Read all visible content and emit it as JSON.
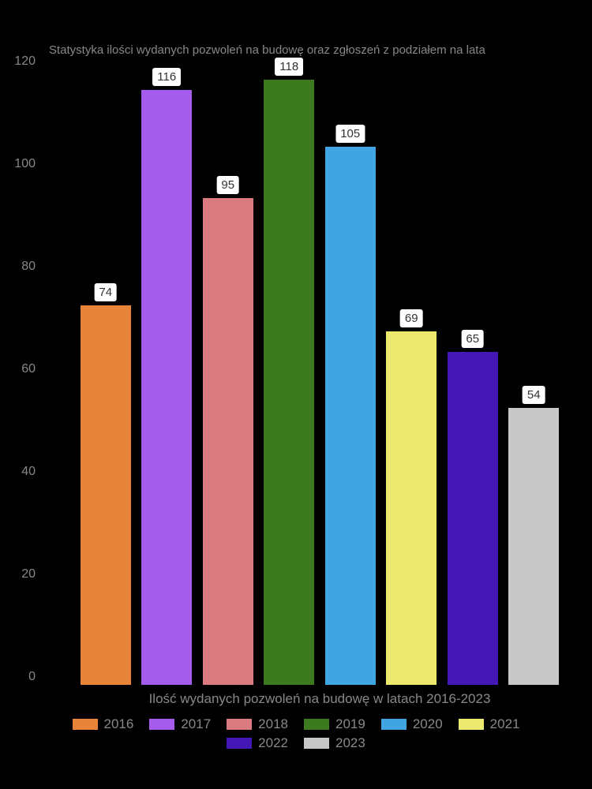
{
  "chart": {
    "type": "bar",
    "title": "Statystyka ilości wydanych pozwoleń na budowę oraz zgłoszeń z podziałem na lata",
    "title_color": "#888888",
    "title_fontsize": 15,
    "background_color": "#000000",
    "xlabel": "Ilość wydanych pozwoleń na budowę w latach 2016-2023",
    "xlabel_fontsize": 17,
    "label_color": "#888888",
    "ylim": [
      0,
      120
    ],
    "ytick_step": 20,
    "yticks": [
      0,
      20,
      40,
      60,
      80,
      100,
      120
    ],
    "tick_fontsize": 16,
    "bar_width_ratio": 0.82,
    "bar_gap_ratio": 0.18,
    "data_label_bg": "#ffffff",
    "data_label_color": "#333333",
    "data_label_fontsize": 15,
    "series": [
      {
        "label": "2016",
        "value": 74,
        "color": "#e8833a"
      },
      {
        "label": "2017",
        "value": 116,
        "color": "#a35cec"
      },
      {
        "label": "2018",
        "value": 95,
        "color": "#db7b7f"
      },
      {
        "label": "2019",
        "value": 118,
        "color": "#3d7a1f"
      },
      {
        "label": "2020",
        "value": 105,
        "color": "#41a5e1"
      },
      {
        "label": "2021",
        "value": 69,
        "color": "#ece96e"
      },
      {
        "label": "2022",
        "value": 65,
        "color": "#4318b5"
      },
      {
        "label": "2023",
        "value": 54,
        "color": "#c7c7c7"
      }
    ],
    "legend_fontsize": 17,
    "legend_swatch_width": 32,
    "legend_swatch_height": 14
  }
}
